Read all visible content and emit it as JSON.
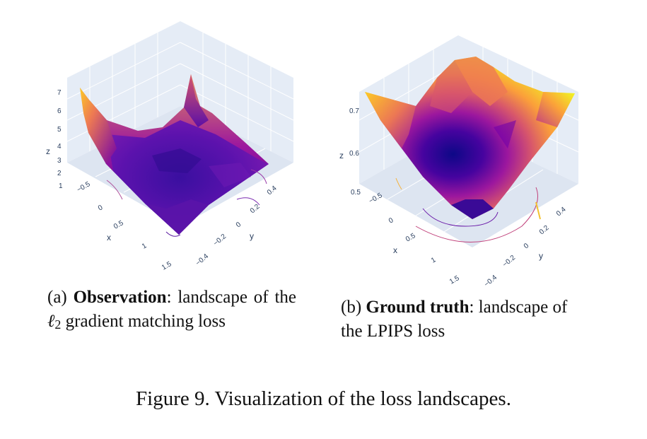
{
  "figure": {
    "number_label": "Figure 9.",
    "title": "Visualization of the loss landscapes."
  },
  "panel_a": {
    "tag": "(a)",
    "bold_label": "Observation",
    "text_1": ": landscape of the",
    "symbol": "ℓ",
    "subscript": "2",
    "text_2": "gradient matching loss",
    "axes": {
      "z_label": "z",
      "x_label": "x",
      "y_label": "y",
      "z_ticks": [
        "7",
        "6",
        "5",
        "4",
        "3",
        "2",
        "1"
      ],
      "x_ticks": [
        "−0.5",
        "0",
        "0.5",
        "1",
        "1.5"
      ],
      "y_ticks": [
        "0.4",
        "0.2",
        "0",
        "−0.2",
        "−0.4"
      ]
    }
  },
  "panel_b": {
    "tag": "(b)",
    "bold_label": "Ground truth",
    "text_1": ": landscape of the LPIPS loss",
    "axes": {
      "z_label": "z",
      "x_label": "x",
      "y_label": "y",
      "z_ticks": [
        "0.7",
        "0.6",
        "0.5"
      ],
      "x_ticks": [
        "−0.5",
        "0",
        "0.5",
        "1",
        "1.5"
      ],
      "y_ticks": [
        "0.4",
        "0.2",
        "0",
        "−0.2",
        "−0.4"
      ]
    }
  },
  "colors": {
    "scene_bg": "#e5ecf6",
    "grid": "#ffffff",
    "colorscale": [
      "#0d0887",
      "#46039f",
      "#7201a8",
      "#9c179e",
      "#bd3786",
      "#d8576b",
      "#ed7953",
      "#fb9f3a",
      "#fdca26",
      "#f0f921"
    ]
  }
}
